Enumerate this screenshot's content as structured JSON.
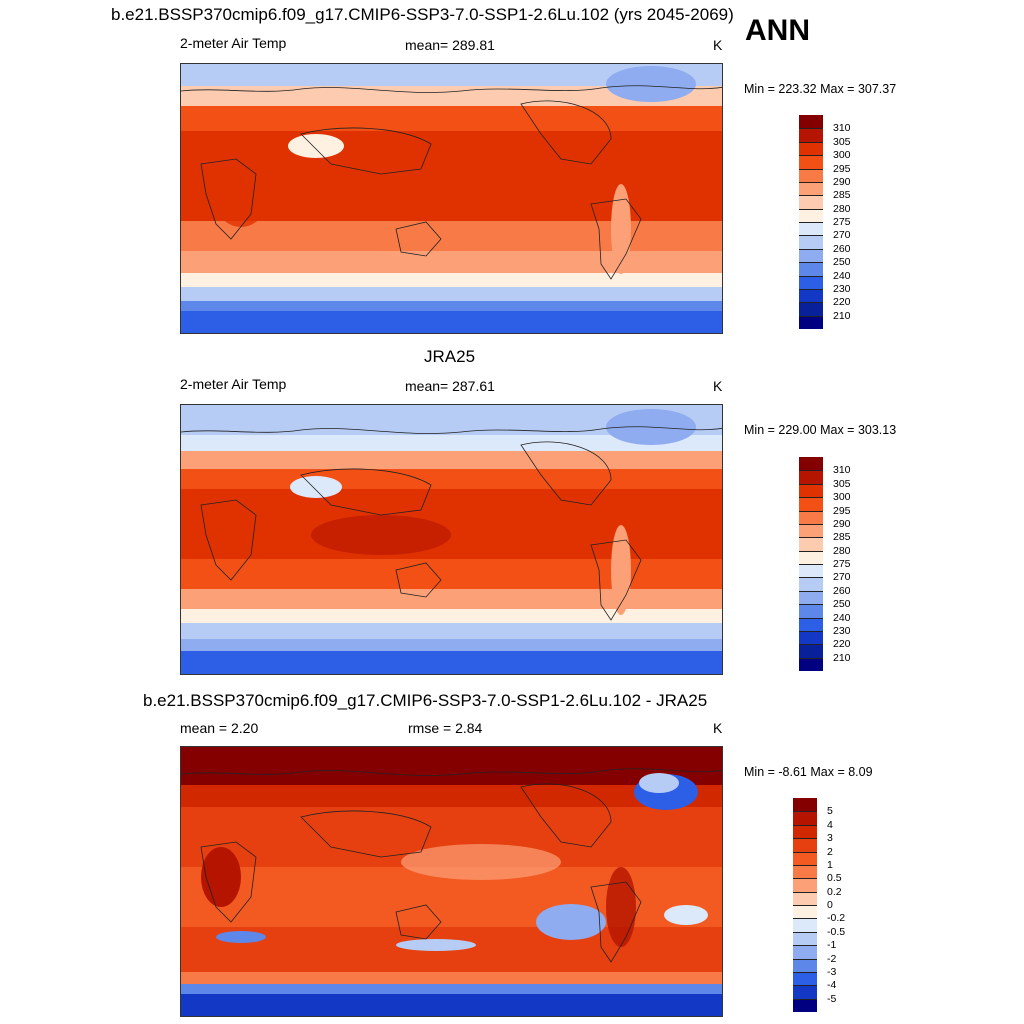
{
  "header": {
    "title": "b.e21.BSSP370cmip6.f09_g17.CMIP6-SSP3-7.0-SSP1-2.6Lu.102 (yrs 2045-2069)",
    "season": "ANN"
  },
  "panels": [
    {
      "title": "",
      "left_label": "2-meter Air Temp",
      "center_label": "mean= 289.81",
      "units": "K",
      "minmax": "Min = 223.32 Max = 307.37",
      "colorbar": {
        "labels": [
          "310",
          "305",
          "300",
          "295",
          "290",
          "285",
          "280",
          "275",
          "270",
          "260",
          "250",
          "240",
          "230",
          "220",
          "210"
        ],
        "colors": [
          "#840000",
          "#b41400",
          "#e03200",
          "#f25014",
          "#f87a46",
          "#fca078",
          "#fdcbb0",
          "#fff1e2",
          "#dce9fb",
          "#b6ccf4",
          "#8eacef",
          "#5e87ea",
          "#2c5ee6",
          "#1338c6",
          "#08209a",
          "#000080"
        ]
      }
    },
    {
      "title": "JRA25",
      "left_label": "2-meter Air Temp",
      "center_label": "mean= 287.61",
      "units": "K",
      "minmax": "Min = 229.00 Max = 303.13",
      "colorbar": {
        "labels": [
          "310",
          "305",
          "300",
          "295",
          "290",
          "285",
          "280",
          "275",
          "270",
          "260",
          "250",
          "240",
          "230",
          "220",
          "210"
        ],
        "colors": [
          "#840000",
          "#b41400",
          "#e03200",
          "#f25014",
          "#f87a46",
          "#fca078",
          "#fdcbb0",
          "#fff1e2",
          "#dce9fb",
          "#b6ccf4",
          "#8eacef",
          "#5e87ea",
          "#2c5ee6",
          "#1338c6",
          "#08209a",
          "#000080"
        ]
      }
    },
    {
      "title": "b.e21.BSSP370cmip6.f09_g17.CMIP6-SSP3-7.0-SSP1-2.6Lu.102 - JRA25",
      "left_label": "mean =   2.20",
      "center_label": "rmse =   2.84",
      "units": "K",
      "minmax": "Min =  -8.61 Max =   8.09",
      "colorbar": {
        "labels": [
          "5",
          "4",
          "3",
          "2",
          "1",
          "0.5",
          "0.2",
          "0",
          "-0.2",
          "-0.5",
          "-1",
          "-2",
          "-3",
          "-4",
          "-5"
        ],
        "colors": [
          "#840000",
          "#b41400",
          "#d22800",
          "#e64010",
          "#f25a22",
          "#f87a46",
          "#fca078",
          "#fdcbb0",
          "#fff1e2",
          "#dce9fb",
          "#b6ccf4",
          "#8eacef",
          "#5e87ea",
          "#2c5ee6",
          "#1338c6",
          "#000080"
        ]
      }
    }
  ]
}
